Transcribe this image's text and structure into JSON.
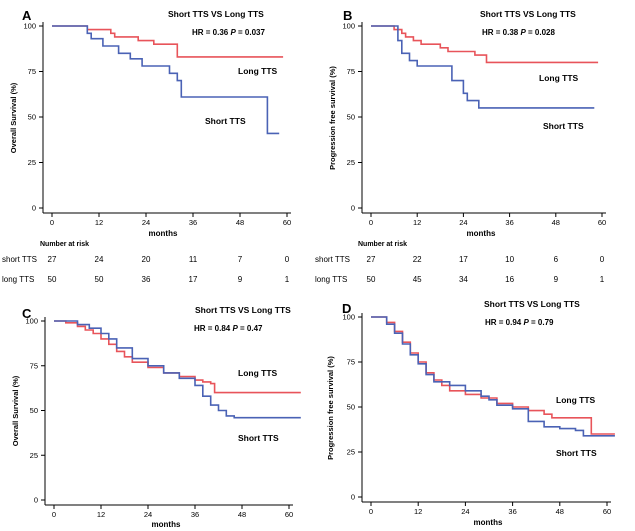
{
  "chart_data": [
    {
      "type": "line",
      "panel": "A",
      "title": "Short TTS VS Long TTS",
      "stat": "HR = 0.36  P = 0.037",
      "xlabel": "months",
      "ylabel": "Overall Survival (%)",
      "xlim": [
        0,
        60
      ],
      "ylim": [
        0,
        100
      ],
      "xticks": [
        "0",
        "12",
        "24",
        "36",
        "48",
        "60"
      ],
      "yticks": [
        "0",
        "25",
        "50",
        "75",
        "100"
      ],
      "grid": false,
      "series": [
        {
          "name": "Long TTS",
          "color": "#e8545a",
          "x": [
            0,
            8,
            9,
            14,
            15,
            16,
            20,
            22,
            26,
            31,
            32,
            59
          ],
          "y": [
            100,
            100,
            98,
            98,
            96,
            94,
            94,
            92,
            90,
            90,
            83,
            83
          ]
        },
        {
          "name": "Short TTS",
          "color": "#4a62b5",
          "x": [
            0,
            8,
            9,
            10,
            12,
            13,
            16,
            17,
            20,
            23,
            27,
            30,
            32,
            33,
            36,
            54,
            55,
            58
          ],
          "y": [
            100,
            100,
            96,
            93,
            93,
            89,
            89,
            85,
            82,
            78,
            78,
            74,
            70,
            61,
            61,
            61,
            41,
            41
          ]
        }
      ],
      "risk_table": {
        "header": "Number at risk",
        "rows": [
          {
            "label": "short TTS",
            "values": [
              "27",
              "24",
              "20",
              "11",
              "7",
              "0"
            ]
          },
          {
            "label": "long TTS",
            "values": [
              "50",
              "50",
              "36",
              "17",
              "9",
              "1"
            ]
          }
        ]
      }
    },
    {
      "type": "line",
      "panel": "B",
      "title": "Short TTS VS Long TTS",
      "stat": "HR = 0.38  P = 0.028",
      "xlabel": "months",
      "ylabel": "Progression free survival (%)",
      "xlim": [
        0,
        60
      ],
      "ylim": [
        0,
        100
      ],
      "xticks": [
        "0",
        "12",
        "24",
        "36",
        "48",
        "60"
      ],
      "yticks": [
        "0",
        "25",
        "50",
        "75",
        "100"
      ],
      "grid": false,
      "series": [
        {
          "name": "Long TTS",
          "color": "#e8545a",
          "x": [
            0,
            5,
            6,
            8,
            9,
            11,
            13,
            18,
            20,
            24,
            27,
            30,
            59
          ],
          "y": [
            100,
            100,
            98,
            96,
            94,
            92,
            90,
            88,
            86,
            86,
            84,
            80,
            80
          ]
        },
        {
          "name": "Short TTS",
          "color": "#4a62b5",
          "x": [
            0,
            6,
            7,
            8,
            10,
            12,
            20,
            21,
            24,
            25,
            28,
            30,
            58
          ],
          "y": [
            100,
            100,
            92,
            85,
            81,
            78,
            78,
            70,
            63,
            59,
            55,
            55,
            55
          ]
        }
      ],
      "risk_table": {
        "header": "Number at risk",
        "rows": [
          {
            "label": "short TTS",
            "values": [
              "27",
              "22",
              "17",
              "10",
              "6",
              "0"
            ]
          },
          {
            "label": "long TTS",
            "values": [
              "50",
              "45",
              "34",
              "16",
              "9",
              "1"
            ]
          }
        ]
      }
    },
    {
      "type": "line",
      "panel": "C",
      "title": "Short TTS VS Long TTS",
      "stat": "HR = 0.84  P = 0.47",
      "xlabel": "months",
      "ylabel": "Overall Survival (%)",
      "xlim": [
        0,
        60
      ],
      "ylim": [
        0,
        100
      ],
      "xticks": [
        "0",
        "12",
        "24",
        "36",
        "48",
        "60"
      ],
      "yticks": [
        "0",
        "25",
        "50",
        "75",
        "100"
      ],
      "grid": false,
      "series": [
        {
          "name": "Long TTS",
          "color": "#e8545a",
          "x": [
            0,
            3,
            6,
            8,
            10,
            12,
            14,
            16,
            18,
            20,
            24,
            28,
            32,
            36,
            38,
            40,
            41,
            63
          ],
          "y": [
            100,
            99,
            97,
            95,
            93,
            90,
            87,
            83,
            80,
            77,
            74,
            71,
            69,
            67,
            66,
            65,
            60,
            60
          ]
        },
        {
          "name": "Short TTS",
          "color": "#4a62b5",
          "x": [
            0,
            6,
            9,
            12,
            14,
            16,
            20,
            24,
            28,
            32,
            36,
            38,
            40,
            42,
            44,
            46,
            63
          ],
          "y": [
            100,
            98,
            96,
            93,
            90,
            85,
            79,
            75,
            71,
            68,
            64,
            58,
            53,
            50,
            47,
            46,
            46
          ]
        }
      ]
    },
    {
      "type": "line",
      "panel": "D",
      "title": "Short TTS VS Long TTS",
      "stat": "HR = 0.94  P = 0.79",
      "xlabel": "months",
      "ylabel": "Progression free survival (%)",
      "xlim": [
        0,
        60
      ],
      "ylim": [
        0,
        100
      ],
      "xticks": [
        "0",
        "12",
        "24",
        "36",
        "48",
        "60"
      ],
      "yticks": [
        "0",
        "25",
        "50",
        "75",
        "100"
      ],
      "grid": false,
      "series": [
        {
          "name": "Long TTS",
          "color": "#e8545a",
          "x": [
            0,
            4,
            6,
            8,
            10,
            12,
            14,
            16,
            18,
            20,
            24,
            28,
            32,
            36,
            40,
            44,
            46,
            55,
            56,
            62
          ],
          "y": [
            100,
            97,
            92,
            86,
            80,
            75,
            69,
            65,
            62,
            59,
            57,
            55,
            52,
            50,
            48,
            46,
            44,
            44,
            35,
            35
          ]
        },
        {
          "name": "Short TTS",
          "color": "#4a62b5",
          "x": [
            0,
            4,
            6,
            8,
            10,
            12,
            14,
            16,
            20,
            24,
            28,
            30,
            32,
            36,
            40,
            44,
            48,
            52,
            54,
            62
          ],
          "y": [
            100,
            96,
            91,
            85,
            79,
            74,
            68,
            64,
            62,
            59,
            56,
            54,
            51,
            49,
            42,
            39,
            38,
            37,
            34,
            34
          ]
        }
      ]
    }
  ]
}
